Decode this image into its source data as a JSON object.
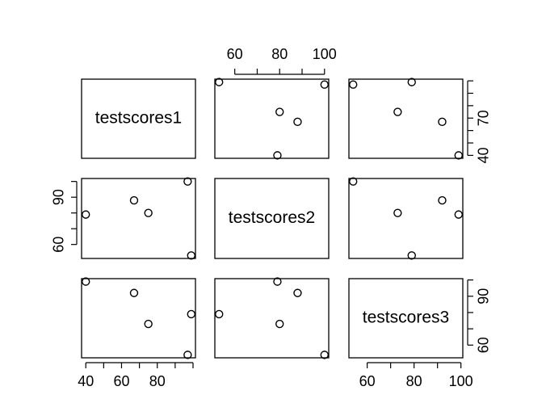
{
  "chart_data": {
    "type": "scatter-matrix",
    "point_color": "#000000",
    "variables": [
      {
        "name": "testscores1",
        "values": [
          40,
          67,
          75,
          97,
          99
        ],
        "lim": [
          37.64,
          101.36
        ],
        "xticks": [
          40,
          {
            "value": 50,
            "label": null
          },
          60,
          {
            "value": 70,
            "label": null
          },
          80,
          {
            "value": 90,
            "label": null
          },
          {
            "value": 100,
            "label": null
          }
        ],
        "yticks": [
          40,
          {
            "value": 50,
            "label": null
          },
          {
            "value": 60,
            "label": null
          },
          70,
          {
            "value": 80,
            "label": null
          },
          {
            "value": 90,
            "label": null
          },
          {
            "value": 100,
            "label": null
          }
        ]
      },
      {
        "name": "testscores2",
        "values": [
          79,
          88,
          80,
          100,
          53
        ],
        "lim": [
          51.12,
          101.88
        ],
        "xticks": [
          60,
          {
            "value": 70,
            "label": null
          },
          80,
          {
            "value": 90,
            "label": null
          },
          100
        ],
        "yticks": [
          60,
          {
            "value": 70,
            "label": null
          },
          {
            "value": 80,
            "label": null
          },
          90,
          {
            "value": 100,
            "label": null
          }
        ]
      },
      {
        "name": "testscores3",
        "values": [
          99,
          92,
          73,
          54,
          79
        ],
        "lim": [
          52.2,
          100.8
        ],
        "xticks": [
          60,
          {
            "value": 70,
            "label": null
          },
          80,
          {
            "value": 90,
            "label": null
          },
          100
        ],
        "yticks": [
          60,
          {
            "value": 70,
            "label": null
          },
          {
            "value": 80,
            "label": null
          },
          90,
          {
            "value": 100,
            "label": null
          }
        ]
      }
    ]
  }
}
